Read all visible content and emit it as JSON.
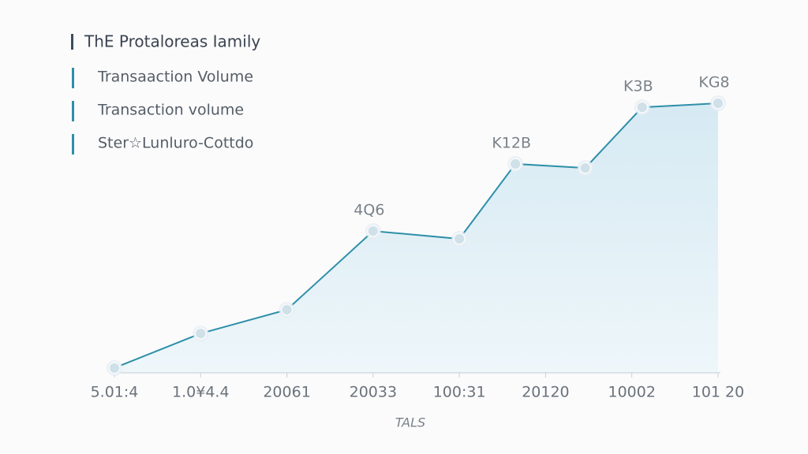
{
  "chart_data": {
    "type": "line",
    "title": "ThE Protaloreas Iamily",
    "legend_items": [
      "Transaaction Volume",
      "Transaction volume",
      "Ster☆Lunluro-Cottdo"
    ],
    "x_label": "TALS",
    "x": [
      0,
      1,
      2,
      3,
      4,
      4.65,
      5.46,
      6.12,
      7
    ],
    "values": [
      1.8,
      14.6,
      23.4,
      52.6,
      49.7,
      77.5,
      76.0,
      98.5,
      100
    ],
    "value_labels": [
      null,
      null,
      null,
      "4Q6",
      null,
      "K12B",
      null,
      "K3B",
      "KG8"
    ],
    "color": "#2e8fa8",
    "area_color": "#dcedf5",
    "xlim": [
      0,
      7
    ],
    "xticks": [
      {
        "value": 0,
        "label": "5.01:4"
      },
      {
        "value": 1,
        "label": "1.0¥4.4"
      },
      {
        "value": 2,
        "label": "20061"
      },
      {
        "value": 3,
        "label": "20033"
      },
      {
        "value": 4,
        "label": "100:31"
      },
      {
        "value": 5,
        "label": "20120"
      },
      {
        "value": 6,
        "label": "10002"
      },
      {
        "value": 7,
        "label": "101 20"
      }
    ],
    "ylim": [
      0,
      100
    ]
  }
}
